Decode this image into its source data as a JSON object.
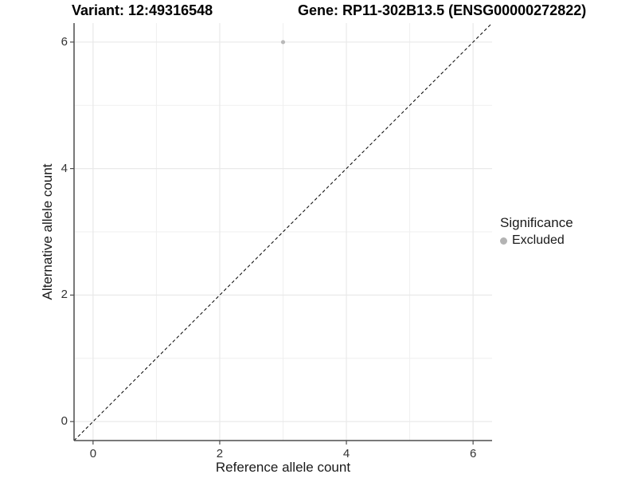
{
  "header": {
    "title_left": "Variant: 12:49316548",
    "title_right": "Gene: RP11-302B13.5 (ENSG00000272822)"
  },
  "chart_data": {
    "type": "scatter",
    "title_left": "Variant: 12:49316548",
    "title_right": "Gene: RP11-302B13.5 (ENSG00000272822)",
    "xlabel": "Reference allele count",
    "ylabel": "Alternative allele count",
    "xlim": [
      -0.3,
      6.3
    ],
    "ylim": [
      -0.3,
      6.3
    ],
    "xticks": [
      0,
      2,
      4,
      6
    ],
    "yticks": [
      0,
      2,
      4,
      6
    ],
    "minor_gridlines_x": [
      1,
      3,
      5
    ],
    "minor_gridlines_y": [
      1,
      3,
      5
    ],
    "grid": "on",
    "points": [
      {
        "x": 3,
        "y": 6,
        "significance": "Excluded"
      }
    ],
    "identity_line": {
      "style": "dashed",
      "equation": "y = x",
      "x_start": -0.3,
      "y_start": -0.3,
      "x_end": 6.3,
      "y_end": 6.3
    },
    "legend": {
      "title": "Significance",
      "position": "right",
      "entries": [
        {
          "label": "Excluded",
          "color": "#b3b3b3",
          "marker": "circle"
        }
      ]
    }
  },
  "colors": {
    "point": "#b9b9b9",
    "major_grid": "#e9e9e9",
    "minor_grid": "#efefef",
    "axis_line": "#4d4d4d",
    "dashed_line": "#000000",
    "tick_text": "#333333",
    "title_text": "#000000"
  }
}
